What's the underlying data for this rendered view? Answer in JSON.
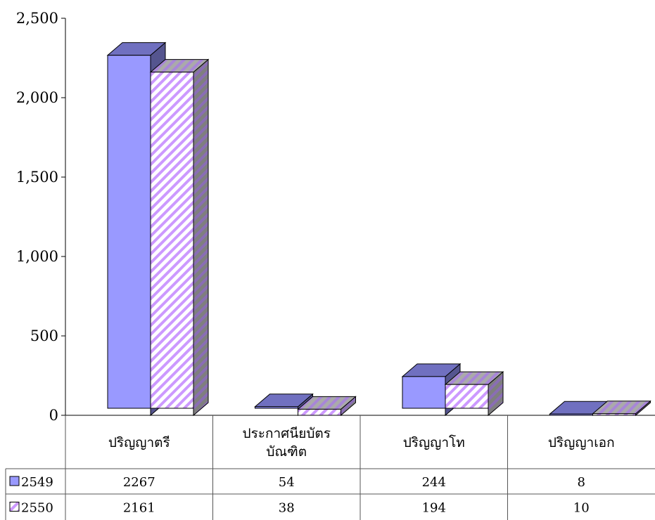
{
  "chart_data": {
    "type": "bar",
    "categories": [
      "ปริญญาตรี",
      "ประกาศนียบัตรบัณฑิต",
      "ปริญญาโท",
      "ปริญญาเอก"
    ],
    "category_lines": [
      [
        "ปริญญาตรี"
      ],
      [
        "ประกาศนียบัตร",
        "บัณฑิต"
      ],
      [
        "ปริญญาโท"
      ],
      [
        "ปริญญาเอก"
      ]
    ],
    "series": [
      {
        "name": "2549",
        "values": [
          2267,
          54,
          244,
          8
        ],
        "color": "#9999ff",
        "pattern": "solid"
      },
      {
        "name": "2550",
        "values": [
          2161,
          38,
          194,
          10
        ],
        "color": "#cc99ff",
        "pattern": "diagonal-stripes"
      }
    ],
    "ylim": [
      0,
      2500
    ],
    "yticks": [
      0,
      500,
      1000,
      1500,
      2000,
      2500
    ],
    "ytick_labels": [
      "0",
      "500",
      "1,000",
      "1,500",
      "2,000",
      "2,500"
    ],
    "data_table": true,
    "three_d": true,
    "grid": false,
    "legend": "in-data-table"
  }
}
